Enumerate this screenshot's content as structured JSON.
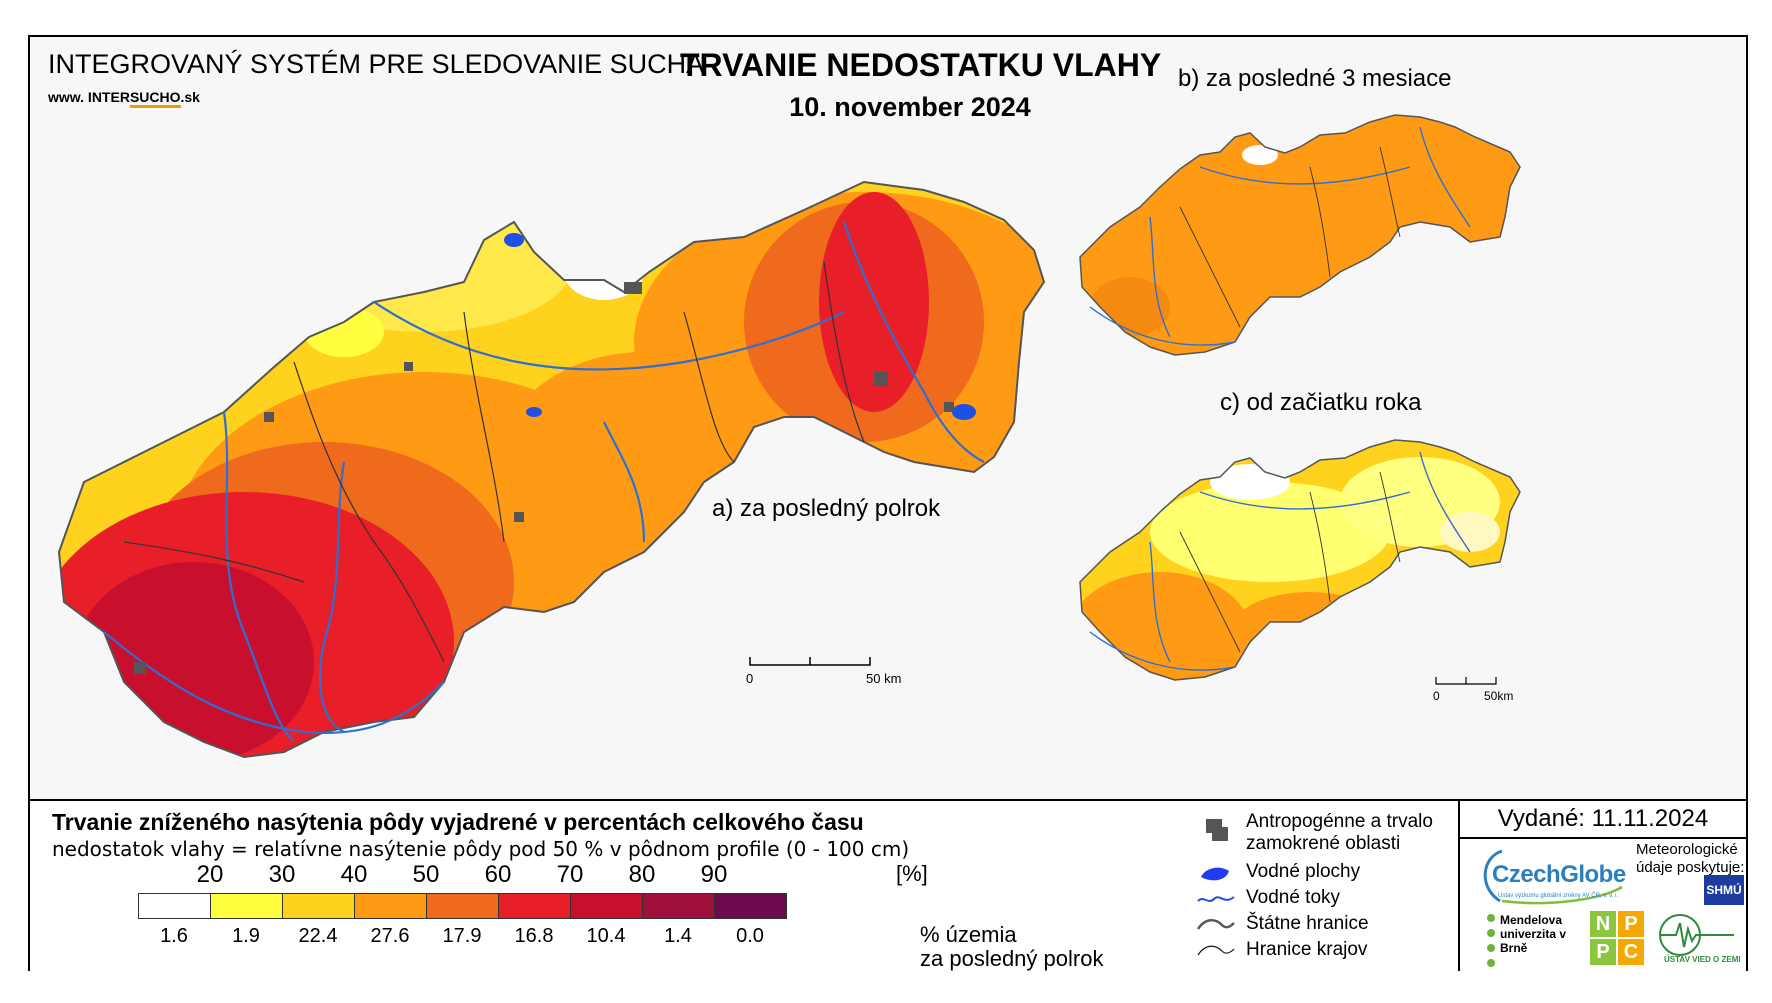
{
  "header": {
    "system_title": "INTEGROVANÝ SYSTÉM PRE SLEDOVANIE SUCHA",
    "site_prefix": "www. INTER",
    "site_mid": "SUCHO",
    "site_suffix": ".sk",
    "title": "TRVANIE NEDOSTATKU VLAHY",
    "date": "10. november 2024"
  },
  "maps": {
    "a": {
      "label": "a) za posledný polrok"
    },
    "b": {
      "label": "b) za posledné 3 mesiace"
    },
    "c": {
      "label": "c) od začiatku roka"
    },
    "scale_main": {
      "start": "0",
      "end": "50 km"
    },
    "scale_small": {
      "start": "0",
      "end": "50km"
    }
  },
  "legend": {
    "title": "Trvanie zníženého nasýtenia pôdy vyjadrené v percentách celkového času",
    "subtitle": "nedostatok vlahy = relatívne nasýtenie pôdy pod 50 % v pôdnom profile (0 - 100 cm)",
    "unit": "[%]",
    "thresholds": [
      "20",
      "30",
      "40",
      "50",
      "60",
      "70",
      "80",
      "90"
    ],
    "colors": [
      "#ffffff",
      "#ffff40",
      "#ffd21e",
      "#ff9a14",
      "#f06a1e",
      "#e81e28",
      "#c8102e",
      "#a0103c",
      "#6e0a50"
    ],
    "shares": [
      "1.6",
      "1.9",
      "22.4",
      "27.6",
      "17.9",
      "16.8",
      "10.4",
      "1.4",
      "0.0"
    ],
    "shares_note_line1": "% územia",
    "shares_note_line2": "za posledný polrok"
  },
  "symbols": {
    "urban": "Antropogénne a trvalo zamokrené oblasti",
    "water_bodies": "Vodné plochy",
    "rivers": "Vodné toky",
    "state_border": "Štátne hranice",
    "region_border": "Hranice krajov"
  },
  "credits": {
    "issued": "Vydané: 11.11.2024",
    "czechglobe": "CzechGlobe",
    "czechglobe_sub": "Ústav výzkumu globální změny AV ČR, v. v. i.",
    "meteo": "Meteorologické údaje poskytuje:",
    "shmu": "SHMÚ",
    "mendel": "Mendelova univerzita v Brně",
    "npc": [
      "N",
      "P",
      "P",
      "C"
    ],
    "uvz": "ÚSTAV VIED O ZEMI"
  }
}
